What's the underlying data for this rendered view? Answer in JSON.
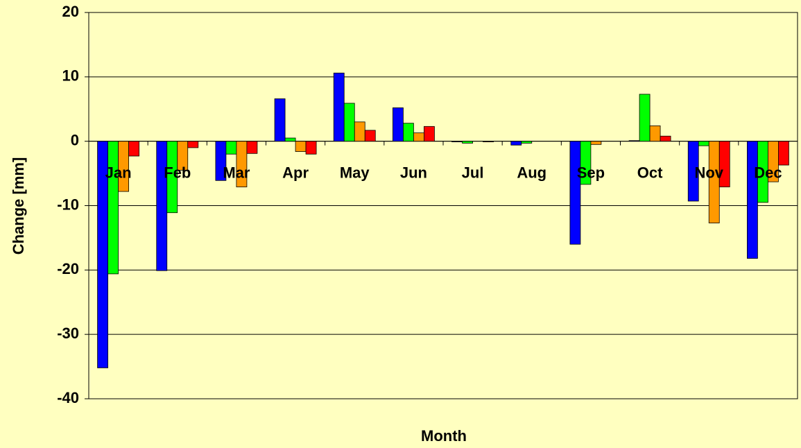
{
  "chart_data": {
    "type": "bar",
    "xlabel": "Month",
    "ylabel": "Change [mm]",
    "categories": [
      "Jan",
      "Feb",
      "Mar",
      "Apr",
      "May",
      "Jun",
      "Jul",
      "Aug",
      "Sep",
      "Oct",
      "Nov",
      "Dec"
    ],
    "series": [
      {
        "color": "#0000ff",
        "values": [
          -35.2,
          -20.1,
          -6.1,
          6.6,
          10.6,
          5.2,
          -0.1,
          -0.6,
          -16.0,
          0.1,
          -9.3,
          -18.2
        ]
      },
      {
        "color": "#00ff00",
        "values": [
          -20.6,
          -11.1,
          -2.0,
          0.5,
          5.9,
          2.8,
          -0.3,
          -0.3,
          -6.7,
          7.3,
          -0.7,
          -9.5
        ]
      },
      {
        "color": "#ff9900",
        "values": [
          -7.8,
          -4.5,
          -7.1,
          -1.6,
          3.0,
          1.3,
          0,
          0,
          -0.5,
          2.4,
          -12.7,
          -6.3
        ]
      },
      {
        "color": "#ff0000",
        "values": [
          -2.3,
          -1.0,
          -1.9,
          -2.0,
          1.7,
          2.3,
          -0.1,
          0,
          0,
          0.8,
          -7.1,
          -3.7
        ]
      }
    ],
    "ylim": [
      -40,
      20
    ],
    "yticks": [
      -40,
      -30,
      -20,
      -10,
      0,
      10,
      20
    ],
    "grid": true
  }
}
